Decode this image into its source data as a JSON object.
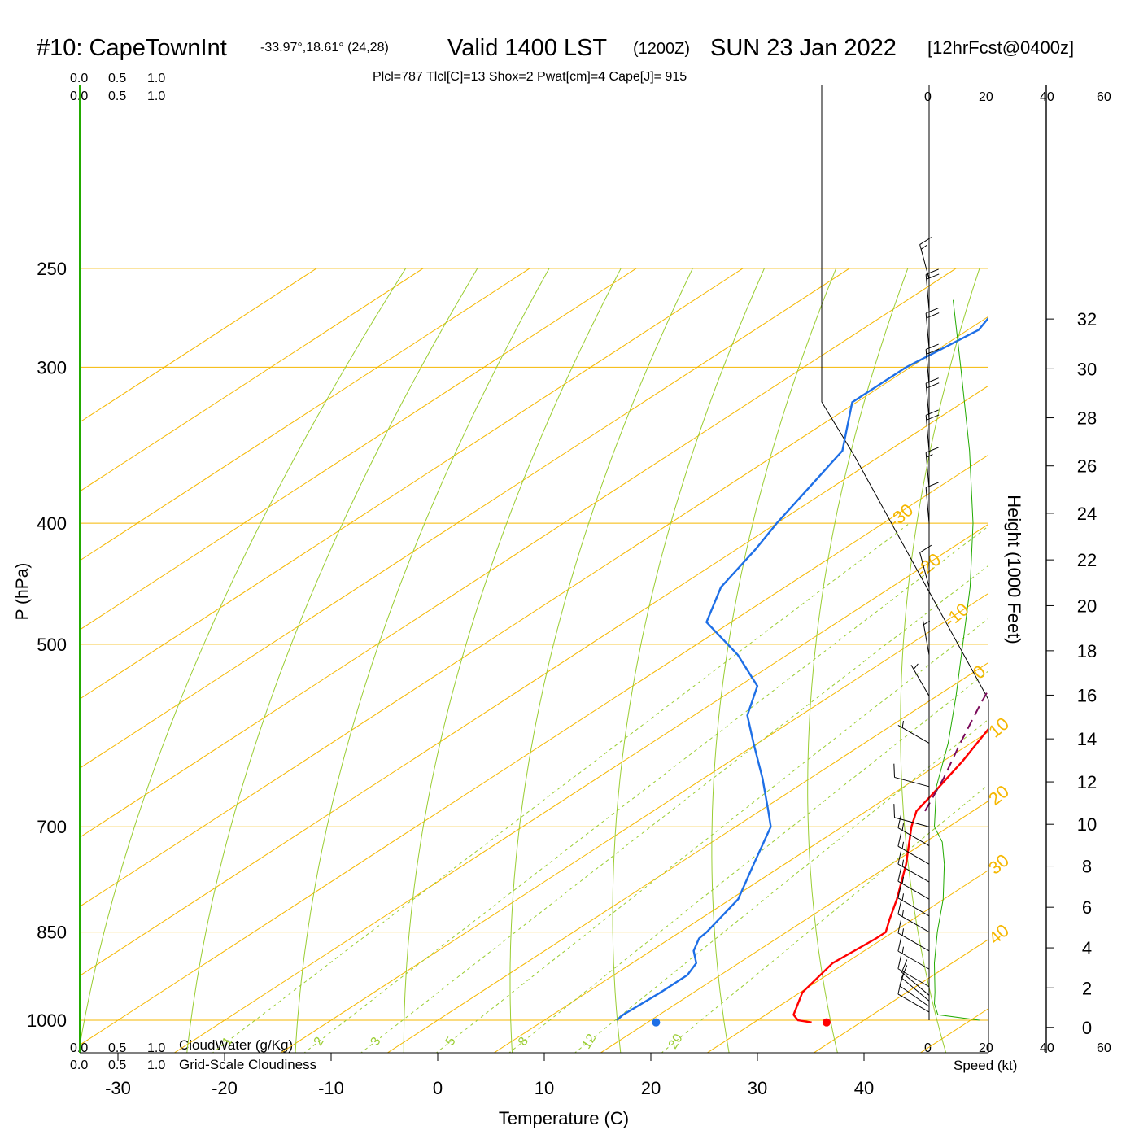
{
  "header": {
    "station": "#10: CapeTownInt",
    "coords": "-33.97°,18.61° (24,28)",
    "valid": "Valid 1400 LST",
    "utc": "(1200Z)",
    "date": "SUN 23 Jan 2022",
    "forecast": "[12hrFcst@0400z]",
    "indices": "Plcl=787 Tlcl[C]=13 Shox=2 Pwat[cm]=4 Cape[J]= 915"
  },
  "scales": {
    "cloud_top_green": [
      "0.0",
      "0.5",
      "1.0"
    ],
    "cloud_top_black": [
      "0.0",
      "0.5",
      "1.0"
    ],
    "cloud_bottom_green": [
      "0.0",
      "0.5",
      "1.0"
    ],
    "cloud_bottom_black": [
      "0.0",
      "0.5",
      "1.0"
    ],
    "cloudwater_label": "CloudWater (g/Kg)",
    "cloudiness_label": "Grid-Scale Cloudiness",
    "speed_ticks": [
      "0",
      "20",
      "40",
      "60"
    ],
    "speed_label": "Speed (kt)"
  },
  "colors": {
    "isotherm": "#f5b700",
    "dry_adiabat": "#9acd32",
    "mixing_ratio": "#9acd32",
    "temperature": "#ff0000",
    "dewpoint": "#1e6fe6",
    "parcel": "#7a0a5a",
    "indices": "#a0004a",
    "green_text": "#22aa00",
    "speed_line": "#22aa00"
  },
  "chart_data": {
    "type": "line",
    "chart_kind": "skew-T log-P sounding",
    "xlabel": "Temperature (C)",
    "ylabel": "P (hPa)",
    "y2label": "Height (1000 Feet)",
    "x_ticks": [
      -30,
      -20,
      -10,
      0,
      10,
      20,
      30,
      40
    ],
    "p_ticks": [
      250,
      300,
      400,
      500,
      700,
      850,
      1000
    ],
    "height_ticks": [
      0,
      2,
      4,
      6,
      8,
      10,
      12,
      14,
      16,
      18,
      20,
      22,
      24,
      26,
      28,
      30,
      32
    ],
    "isotherm_labels": [
      {
        "t": -30,
        "text": "-30"
      },
      {
        "t": -20,
        "text": "-20"
      },
      {
        "t": -10,
        "text": "-10"
      },
      {
        "t": 0,
        "text": "0"
      },
      {
        "t": 10,
        "text": "10"
      },
      {
        "t": 20,
        "text": "20"
      },
      {
        "t": 30,
        "text": "30"
      },
      {
        "t": 40,
        "text": "40"
      }
    ],
    "mixing_ratio_labels": [
      "1",
      "2",
      "3",
      "5",
      "8",
      "12",
      "20"
    ],
    "series": [
      {
        "name": "Temperature",
        "color": "#ff0000",
        "points": [
          [
            1004,
            35.4
          ],
          [
            1000,
            33.8
          ],
          [
            990,
            32.6
          ],
          [
            950,
            30.2
          ],
          [
            900,
            28.8
          ],
          [
            860,
            29.3
          ],
          [
            850,
            29.3
          ],
          [
            830,
            27.8
          ],
          [
            800,
            25.6
          ],
          [
            750,
            21.4
          ],
          [
            700,
            16.5
          ],
          [
            680,
            14.7
          ],
          [
            660,
            13.8
          ],
          [
            620,
            11.8
          ],
          [
            580,
            9.3
          ],
          [
            540,
            6.6
          ],
          [
            500,
            3.6
          ],
          [
            480,
            1.6
          ],
          [
            440,
            -3.4
          ],
          [
            400,
            -8.0
          ],
          [
            350,
            -13.8
          ],
          [
            310,
            -19.3
          ],
          [
            285,
            -24.2
          ],
          [
            270,
            -27.9
          ]
        ]
      },
      {
        "name": "Dewpoint",
        "color": "#1e6fe6",
        "points": [
          [
            1000,
            16.8
          ],
          [
            990,
            16.6
          ],
          [
            950,
            16.9
          ],
          [
            920,
            16.9
          ],
          [
            900,
            16.0
          ],
          [
            880,
            14.0
          ],
          [
            860,
            12.7
          ],
          [
            850,
            12.5
          ],
          [
            800,
            10.7
          ],
          [
            750,
            7.1
          ],
          [
            700,
            3.3
          ],
          [
            680,
            0.8
          ],
          [
            640,
            -4.5
          ],
          [
            600,
            -10.4
          ],
          [
            570,
            -15.0
          ],
          [
            540,
            -18.3
          ],
          [
            510,
            -24.6
          ],
          [
            480,
            -32.3
          ],
          [
            450,
            -36.0
          ],
          [
            420,
            -38.2
          ],
          [
            400,
            -40.0
          ],
          [
            350,
            -44.3
          ],
          [
            320,
            -50.4
          ],
          [
            300,
            -50.4
          ],
          [
            280,
            -49.0
          ],
          [
            265,
            -51.0
          ]
        ]
      },
      {
        "name": "Parcel",
        "color": "#7a0a5a",
        "dashed": true,
        "points": [
          [
            680,
            15.5
          ],
          [
            640,
            12.5
          ],
          [
            600,
            9.0
          ],
          [
            560,
            5.4
          ],
          [
            520,
            1.7
          ],
          [
            480,
            -2.7
          ],
          [
            440,
            -7.8
          ],
          [
            400,
            -13.3
          ],
          [
            360,
            -19.0
          ],
          [
            320,
            -25.6
          ],
          [
            300,
            -29.6
          ],
          [
            285,
            -33.0
          ],
          [
            270,
            -36.6
          ]
        ]
      }
    ],
    "surface_markers": [
      {
        "name": "surface-temperature",
        "p": 1004,
        "t": 36.8,
        "color": "#ff0000"
      },
      {
        "name": "surface-dewpoint",
        "p": 1004,
        "t": 20.8,
        "color": "#1e6fe6"
      }
    ],
    "wind_speed_profile": [
      [
        1000,
        17.2
      ],
      [
        990,
        3.0
      ],
      [
        970,
        1.8
      ],
      [
        950,
        2.0
      ],
      [
        900,
        1.8
      ],
      [
        850,
        2.8
      ],
      [
        800,
        4.8
      ],
      [
        750,
        5.2
      ],
      [
        720,
        4.5
      ],
      [
        700,
        1.8
      ],
      [
        650,
        2.5
      ],
      [
        600,
        6.5
      ],
      [
        550,
        9.2
      ],
      [
        500,
        11.5
      ],
      [
        450,
        14.0
      ],
      [
        400,
        15.0
      ],
      [
        350,
        13.8
      ],
      [
        300,
        10.8
      ],
      [
        265,
        8.2
      ]
    ],
    "wind_barbs": [
      {
        "p": 985,
        "dir": 300,
        "spd": 10
      },
      {
        "p": 975,
        "dir": 305,
        "spd": 10
      },
      {
        "p": 965,
        "dir": 310,
        "spd": 10
      },
      {
        "p": 955,
        "dir": 310,
        "spd": 10
      },
      {
        "p": 940,
        "dir": 300,
        "spd": 10
      },
      {
        "p": 910,
        "dir": 300,
        "spd": 15
      },
      {
        "p": 880,
        "dir": 300,
        "spd": 15
      },
      {
        "p": 850,
        "dir": 300,
        "spd": 15
      },
      {
        "p": 825,
        "dir": 300,
        "spd": 15
      },
      {
        "p": 800,
        "dir": 300,
        "spd": 15
      },
      {
        "p": 775,
        "dir": 300,
        "spd": 15
      },
      {
        "p": 750,
        "dir": 300,
        "spd": 15
      },
      {
        "p": 725,
        "dir": 300,
        "spd": 15
      },
      {
        "p": 700,
        "dir": 285,
        "spd": 10
      },
      {
        "p": 650,
        "dir": 285,
        "spd": 10
      },
      {
        "p": 600,
        "dir": 300,
        "spd": 5
      },
      {
        "p": 550,
        "dir": 330,
        "spd": 5
      },
      {
        "p": 510,
        "dir": 350,
        "spd": 5
      },
      {
        "p": 450,
        "dir": 345,
        "spd": 10
      },
      {
        "p": 400,
        "dir": 355,
        "spd": 10
      },
      {
        "p": 375,
        "dir": 355,
        "spd": 15
      },
      {
        "p": 350,
        "dir": 355,
        "spd": 20
      },
      {
        "p": 330,
        "dir": 355,
        "spd": 20
      },
      {
        "p": 310,
        "dir": 355,
        "spd": 20
      },
      {
        "p": 290,
        "dir": 355,
        "spd": 20
      },
      {
        "p": 270,
        "dir": 355,
        "spd": 20
      },
      {
        "p": 255,
        "dir": 345,
        "spd": 15
      }
    ]
  }
}
